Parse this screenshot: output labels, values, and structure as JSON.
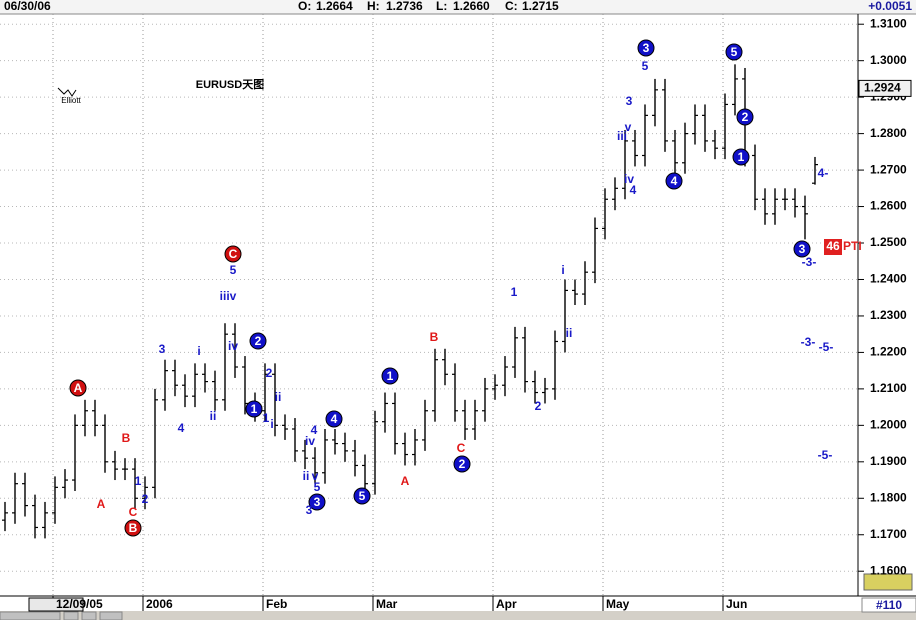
{
  "header": {
    "date": "06/30/06",
    "open_label": "O:",
    "open": "1.2664",
    "high_label": "H:",
    "high": "1.2736",
    "low_label": "L:",
    "low": "1.2660",
    "close_label": "C:",
    "close": "1.2715",
    "change": "+0.0051"
  },
  "chart_data": {
    "type": "ohlc",
    "title": "EURUSD天图",
    "icon_label": "Elliott",
    "color": "#000000",
    "categories": [
      null,
      null,
      null,
      null,
      null,
      "12/09/05",
      null,
      null,
      null,
      null,
      null,
      null,
      null,
      null,
      "2006",
      null,
      null,
      null,
      null,
      null,
      null,
      null,
      null,
      null,
      null,
      null,
      "Feb",
      null,
      null,
      null,
      null,
      null,
      null,
      null,
      null,
      null,
      null,
      "Mar",
      null,
      null,
      null,
      null,
      null,
      null,
      null,
      null,
      null,
      null,
      null,
      "Apr",
      null,
      null,
      null,
      null,
      null,
      null,
      null,
      null,
      null,
      null,
      "May",
      null,
      null,
      null,
      null,
      null,
      null,
      null,
      null,
      null,
      null,
      null,
      "Jun",
      null,
      null,
      null,
      null,
      null,
      null,
      null,
      null,
      null
    ],
    "open": [
      1.174,
      1.176,
      1.184,
      1.178,
      1.172,
      1.176,
      1.183,
      1.185,
      1.2,
      1.204,
      1.2,
      1.19,
      1.188,
      1.188,
      1.18,
      1.183,
      1.207,
      1.215,
      1.211,
      1.208,
      1.214,
      1.212,
      1.207,
      1.225,
      1.216,
      1.206,
      1.204,
      1.214,
      1.2,
      1.199,
      1.193,
      1.191,
      1.187,
      1.196,
      1.195,
      1.193,
      1.189,
      1.184,
      1.201,
      1.206,
      1.195,
      1.192,
      1.196,
      1.204,
      1.218,
      1.214,
      1.204,
      1.199,
      1.204,
      1.21,
      1.211,
      1.216,
      1.224,
      1.212,
      1.209,
      1.21,
      1.223,
      1.237,
      1.236,
      1.242,
      1.254,
      1.262,
      1.265,
      1.278,
      1.274,
      1.285,
      1.292,
      1.278,
      1.272,
      1.28,
      1.285,
      1.278,
      1.276,
      1.288,
      1.295,
      1.274,
      1.262,
      1.258,
      1.262,
      1.262,
      1.26,
      1.2664
    ],
    "high": [
      1.179,
      1.187,
      1.187,
      1.181,
      1.179,
      1.186,
      1.188,
      1.203,
      1.207,
      1.207,
      1.203,
      1.193,
      1.191,
      1.191,
      1.186,
      1.21,
      1.218,
      1.218,
      1.214,
      1.217,
      1.217,
      1.215,
      1.228,
      1.228,
      1.219,
      1.209,
      1.217,
      1.217,
      1.203,
      1.202,
      1.196,
      1.194,
      1.199,
      1.199,
      1.198,
      1.196,
      1.192,
      1.204,
      1.209,
      1.209,
      1.198,
      1.199,
      1.207,
      1.221,
      1.221,
      1.217,
      1.207,
      1.207,
      1.213,
      1.214,
      1.219,
      1.227,
      1.227,
      1.215,
      1.213,
      1.226,
      1.24,
      1.24,
      1.245,
      1.257,
      1.265,
      1.268,
      1.281,
      1.281,
      1.288,
      1.295,
      1.295,
      1.281,
      1.283,
      1.288,
      1.288,
      1.281,
      1.291,
      1.299,
      1.298,
      1.277,
      1.265,
      1.265,
      1.265,
      1.265,
      1.263,
      1.2736
    ],
    "low": [
      1.171,
      1.173,
      1.175,
      1.169,
      1.169,
      1.173,
      1.18,
      1.182,
      1.197,
      1.197,
      1.187,
      1.185,
      1.185,
      1.177,
      1.177,
      1.18,
      1.204,
      1.208,
      1.205,
      1.205,
      1.209,
      1.204,
      1.204,
      1.213,
      1.203,
      1.201,
      1.201,
      1.197,
      1.196,
      1.19,
      1.188,
      1.184,
      1.184,
      1.192,
      1.19,
      1.186,
      1.181,
      1.181,
      1.198,
      1.192,
      1.189,
      1.189,
      1.193,
      1.201,
      1.211,
      1.201,
      1.196,
      1.196,
      1.201,
      1.207,
      1.208,
      1.213,
      1.209,
      1.206,
      1.206,
      1.207,
      1.22,
      1.233,
      1.233,
      1.239,
      1.251,
      1.259,
      1.262,
      1.271,
      1.271,
      1.282,
      1.275,
      1.269,
      1.269,
      1.277,
      1.275,
      1.273,
      1.273,
      1.285,
      1.271,
      1.259,
      1.255,
      1.255,
      1.259,
      1.257,
      1.251,
      1.266
    ],
    "close": [
      1.176,
      1.184,
      1.178,
      1.172,
      1.176,
      1.183,
      1.185,
      1.2,
      1.204,
      1.2,
      1.19,
      1.188,
      1.188,
      1.18,
      1.183,
      1.207,
      1.215,
      1.211,
      1.208,
      1.214,
      1.212,
      1.207,
      1.225,
      1.216,
      1.206,
      1.204,
      1.214,
      1.2,
      1.199,
      1.193,
      1.191,
      1.187,
      1.196,
      1.195,
      1.193,
      1.189,
      1.184,
      1.201,
      1.206,
      1.195,
      1.192,
      1.196,
      1.204,
      1.218,
      1.214,
      1.204,
      1.199,
      1.204,
      1.21,
      1.211,
      1.216,
      1.224,
      1.212,
      1.209,
      1.21,
      1.223,
      1.237,
      1.236,
      1.242,
      1.254,
      1.262,
      1.265,
      1.278,
      1.274,
      1.285,
      1.292,
      1.278,
      1.272,
      1.28,
      1.285,
      1.278,
      1.276,
      1.288,
      1.295,
      1.274,
      1.262,
      1.258,
      1.262,
      1.262,
      1.26,
      1.258,
      1.2715
    ],
    "ylim": [
      1.1543,
      1.3128
    ],
    "yticks": [
      {
        "value": 1.16,
        "label": "1.1600"
      },
      {
        "value": 1.17,
        "label": "1.1700"
      },
      {
        "value": 1.18,
        "label": "1.1800"
      },
      {
        "value": 1.19,
        "label": "1.1900"
      },
      {
        "value": 1.2,
        "label": "1.2000"
      },
      {
        "value": 1.21,
        "label": "1.2100"
      },
      {
        "value": 1.22,
        "label": "1.2200"
      },
      {
        "value": 1.23,
        "label": "1.2300"
      },
      {
        "value": 1.24,
        "label": "1.2400"
      },
      {
        "value": 1.25,
        "label": "1.2500"
      },
      {
        "value": 1.26,
        "label": "1.2600"
      },
      {
        "value": 1.27,
        "label": "1.2700"
      },
      {
        "value": 1.28,
        "label": "1.2800"
      },
      {
        "value": 1.29,
        "label": "1.2900"
      },
      {
        "value": 1.3,
        "label": "1.3000"
      },
      {
        "value": 1.31,
        "label": "1.3100"
      }
    ],
    "grid": true,
    "price_marker": 1.2924,
    "badge": "46",
    "badge_text": "PTI",
    "bar_count": "#110",
    "annotations": [
      {
        "text": "3",
        "style": "blue-circle"
      },
      {
        "text": "5",
        "style": "blue-circle"
      },
      {
        "text": "2",
        "style": "blue-circle"
      },
      {
        "text": "1",
        "style": "blue-circle"
      },
      {
        "text": "4",
        "style": "blue-circle"
      },
      {
        "text": "3",
        "style": "blue-circle"
      },
      {
        "text": "2",
        "style": "blue-circle"
      },
      {
        "text": "1",
        "style": "blue-circle"
      },
      {
        "text": "4",
        "style": "blue-circle"
      },
      {
        "text": "1",
        "style": "blue-circle"
      },
      {
        "text": "2",
        "style": "blue-circle"
      },
      {
        "text": "3",
        "style": "blue-circle"
      },
      {
        "text": "5",
        "style": "blue-circle"
      },
      {
        "text": "C",
        "style": "red-circle"
      },
      {
        "text": "A",
        "style": "red-circle"
      },
      {
        "text": "B",
        "style": "red-circle"
      },
      {
        "text": "5",
        "style": "blue"
      },
      {
        "text": "3",
        "style": "blue"
      },
      {
        "text": "v",
        "style": "blue"
      },
      {
        "text": "iii",
        "style": "blue"
      },
      {
        "text": "iv",
        "style": "blue"
      },
      {
        "text": "4",
        "style": "blue"
      },
      {
        "text": "5",
        "style": "blue"
      },
      {
        "text": "iiiv",
        "style": "blue"
      },
      {
        "text": "iv",
        "style": "blue"
      },
      {
        "text": "2",
        "style": "blue"
      },
      {
        "text": "ii",
        "style": "blue"
      },
      {
        "text": "1",
        "style": "blue"
      },
      {
        "text": "i",
        "style": "blue"
      },
      {
        "text": "3",
        "style": "blue"
      },
      {
        "text": "i",
        "style": "blue"
      },
      {
        "text": "ii",
        "style": "blue"
      },
      {
        "text": "4",
        "style": "blue"
      },
      {
        "text": "1",
        "style": "blue"
      },
      {
        "text": "2",
        "style": "blue"
      },
      {
        "text": "4",
        "style": "blue"
      },
      {
        "text": "iv",
        "style": "blue"
      },
      {
        "text": "ii",
        "style": "blue"
      },
      {
        "text": "v",
        "style": "blue"
      },
      {
        "text": "5",
        "style": "blue"
      },
      {
        "text": "3",
        "style": "blue"
      },
      {
        "text": "1",
        "style": "blue"
      },
      {
        "text": "i",
        "style": "blue"
      },
      {
        "text": "ii",
        "style": "blue"
      },
      {
        "text": "2",
        "style": "blue"
      },
      {
        "text": "4-",
        "style": "blue"
      },
      {
        "text": "-3-",
        "style": "blue"
      },
      {
        "text": "-3-",
        "style": "blue"
      },
      {
        "text": "-5-",
        "style": "blue"
      },
      {
        "text": "-5-",
        "style": "blue"
      },
      {
        "text": "B",
        "style": "red"
      },
      {
        "text": "A",
        "style": "red"
      },
      {
        "text": "C",
        "style": "red"
      },
      {
        "text": "B",
        "style": "red"
      },
      {
        "text": "A",
        "style": "red"
      },
      {
        "text": "C",
        "style": "red"
      }
    ]
  }
}
